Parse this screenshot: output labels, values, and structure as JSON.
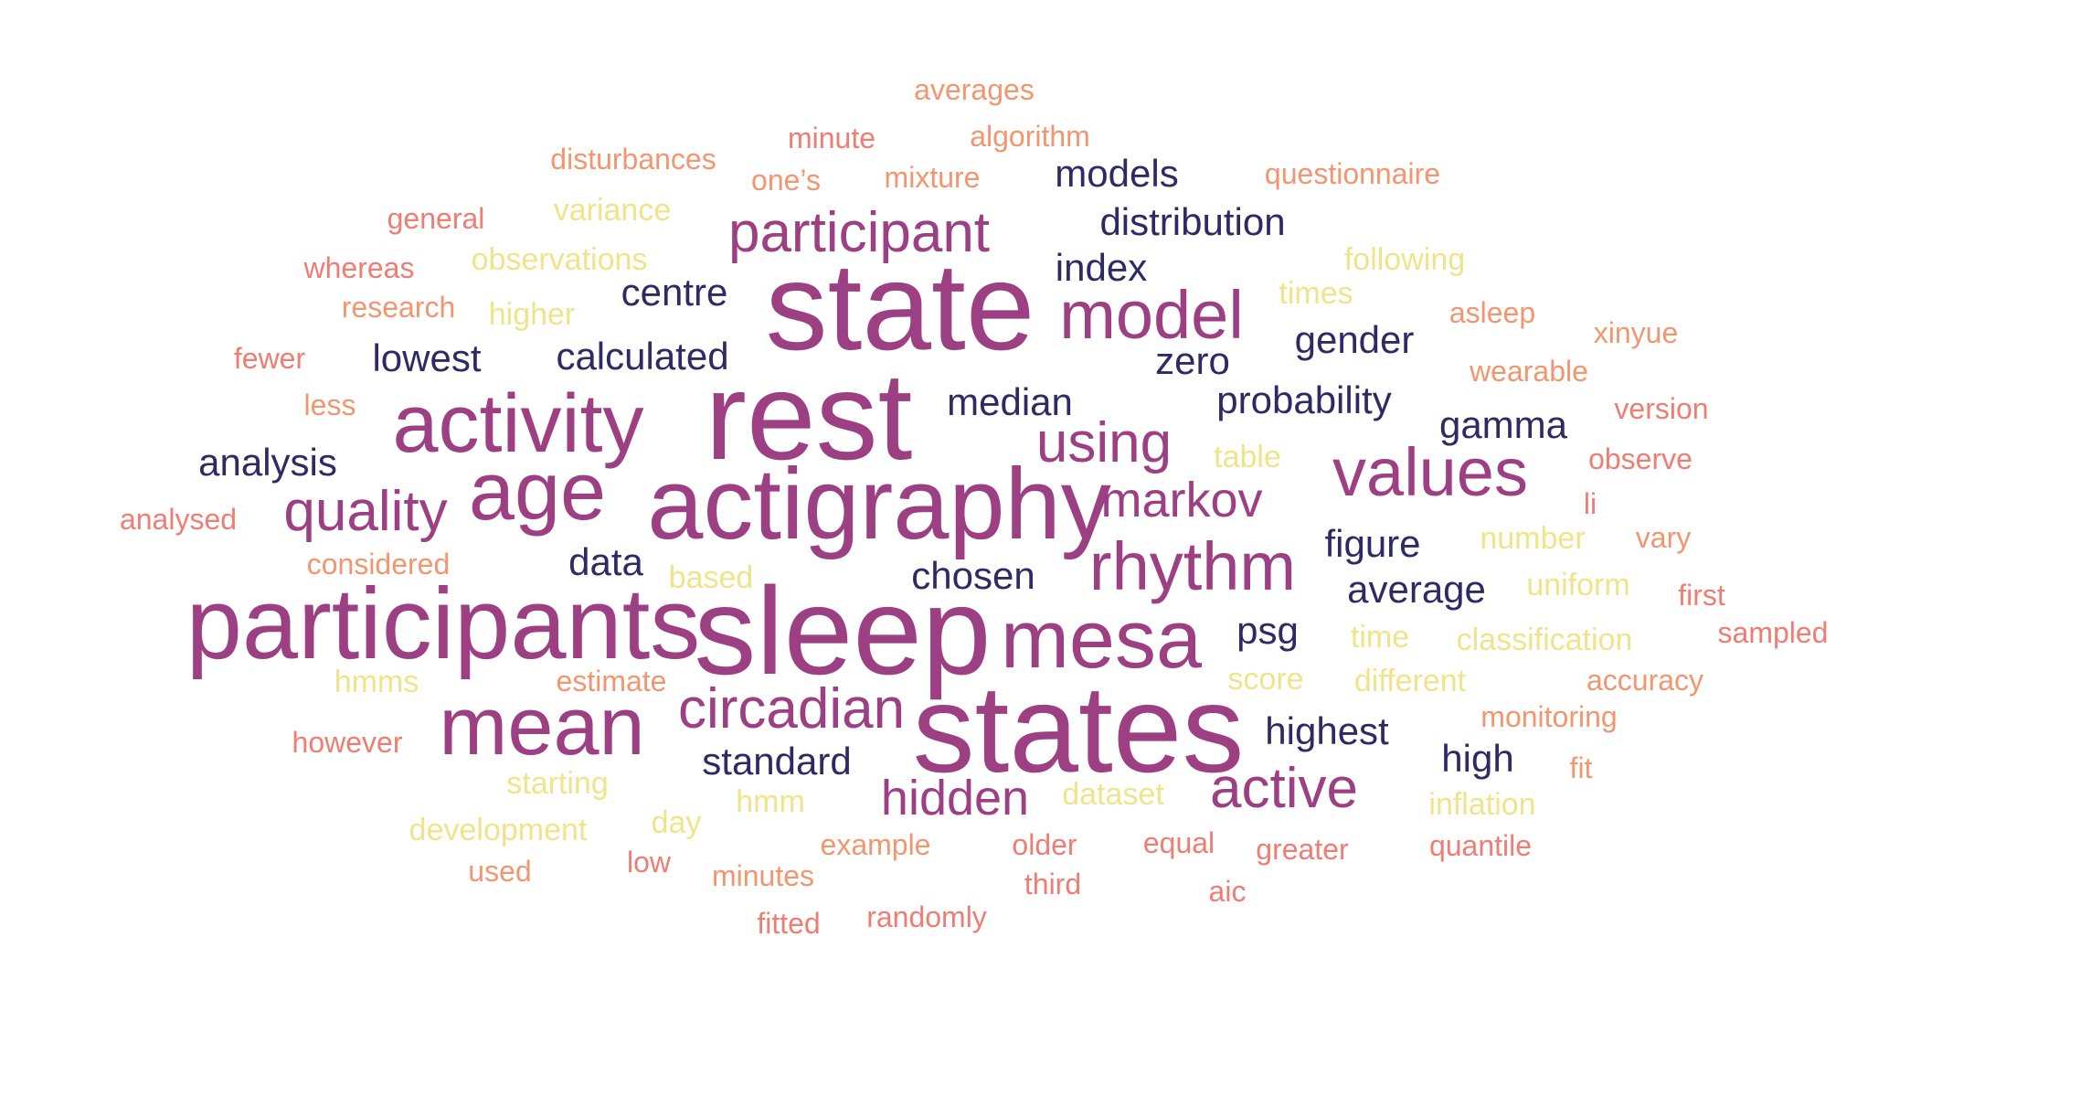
{
  "words": [
    {
      "text": "rest",
      "tier": 2,
      "size": "xxl"
    },
    {
      "text": "state",
      "tier": 2,
      "size": "xxl"
    },
    {
      "text": "sleep",
      "tier": 2,
      "size": "xxl"
    },
    {
      "text": "states",
      "tier": 2,
      "size": "xxl"
    },
    {
      "text": "actigraphy",
      "tier": 2,
      "size": "xl"
    },
    {
      "text": "participants",
      "tier": 2,
      "size": "xl"
    },
    {
      "text": "activity",
      "tier": 2,
      "size": "l"
    },
    {
      "text": "mean",
      "tier": 2,
      "size": "l"
    },
    {
      "text": "mesa",
      "tier": 2,
      "size": "l"
    },
    {
      "text": "age",
      "tier": 2,
      "size": "l"
    },
    {
      "text": "model",
      "tier": 2,
      "size": "m"
    },
    {
      "text": "values",
      "tier": 2,
      "size": "m"
    },
    {
      "text": "rhythm",
      "tier": 2,
      "size": "m"
    },
    {
      "text": "participant",
      "tier": 2,
      "size": "s"
    },
    {
      "text": "quality",
      "tier": 2,
      "size": "s"
    },
    {
      "text": "using",
      "tier": 2,
      "size": "s"
    },
    {
      "text": "circadian",
      "tier": 2,
      "size": "s"
    },
    {
      "text": "active",
      "tier": 2,
      "size": "s"
    },
    {
      "text": "hidden",
      "tier": 2,
      "size": "xs"
    },
    {
      "text": "markov",
      "tier": 2,
      "size": "xs"
    },
    {
      "text": "distribution",
      "tier": 1
    },
    {
      "text": "index",
      "tier": 1
    },
    {
      "text": "models",
      "tier": 1
    },
    {
      "text": "centre",
      "tier": 1
    },
    {
      "text": "lowest",
      "tier": 1
    },
    {
      "text": "calculated",
      "tier": 1
    },
    {
      "text": "zero",
      "tier": 1
    },
    {
      "text": "gender",
      "tier": 1
    },
    {
      "text": "probability",
      "tier": 1
    },
    {
      "text": "median",
      "tier": 1
    },
    {
      "text": "gamma",
      "tier": 1
    },
    {
      "text": "analysis",
      "tier": 1
    },
    {
      "text": "figure",
      "tier": 1
    },
    {
      "text": "data",
      "tier": 1
    },
    {
      "text": "chosen",
      "tier": 1
    },
    {
      "text": "average",
      "tier": 1
    },
    {
      "text": "psg",
      "tier": 1
    },
    {
      "text": "highest",
      "tier": 1
    },
    {
      "text": "standard",
      "tier": 1
    },
    {
      "text": "high",
      "tier": 1
    },
    {
      "text": "variance",
      "tier": 3
    },
    {
      "text": "observations",
      "tier": 3
    },
    {
      "text": "higher",
      "tier": 3
    },
    {
      "text": "following",
      "tier": 3
    },
    {
      "text": "times",
      "tier": 3
    },
    {
      "text": "table",
      "tier": 3
    },
    {
      "text": "number",
      "tier": 3
    },
    {
      "text": "based",
      "tier": 3
    },
    {
      "text": "uniform",
      "tier": 3
    },
    {
      "text": "time",
      "tier": 3
    },
    {
      "text": "classification",
      "tier": 3
    },
    {
      "text": "hmms",
      "tier": 3
    },
    {
      "text": "score",
      "tier": 3
    },
    {
      "text": "different",
      "tier": 3
    },
    {
      "text": "starting",
      "tier": 3
    },
    {
      "text": "hmm",
      "tier": 3
    },
    {
      "text": "dataset",
      "tier": 3
    },
    {
      "text": "inflation",
      "tier": 3
    },
    {
      "text": "development",
      "tier": 3
    },
    {
      "text": "day",
      "tier": 3
    },
    {
      "text": "averages",
      "tier": 4
    },
    {
      "text": "algorithm",
      "tier": 4
    },
    {
      "text": "disturbances",
      "tier": 4
    },
    {
      "text": "mixture",
      "tier": 4
    },
    {
      "text": "questionnaire",
      "tier": 4
    },
    {
      "text": "one’s",
      "tier": 4
    },
    {
      "text": "research",
      "tier": 4
    },
    {
      "text": "asleep",
      "tier": 4
    },
    {
      "text": "xinyue",
      "tier": 4
    },
    {
      "text": "wearable",
      "tier": 4
    },
    {
      "text": "less",
      "tier": 4
    },
    {
      "text": "considered",
      "tier": 4
    },
    {
      "text": "vary",
      "tier": 4
    },
    {
      "text": "estimate",
      "tier": 4
    },
    {
      "text": "accuracy",
      "tier": 4
    },
    {
      "text": "monitoring",
      "tier": 4
    },
    {
      "text": "fit",
      "tier": 4
    },
    {
      "text": "example",
      "tier": 4
    },
    {
      "text": "used",
      "tier": 4
    },
    {
      "text": "minutes",
      "tier": 4
    },
    {
      "text": "minute",
      "tier": 5
    },
    {
      "text": "general",
      "tier": 5
    },
    {
      "text": "whereas",
      "tier": 5
    },
    {
      "text": "fewer",
      "tier": 5
    },
    {
      "text": "version",
      "tier": 5
    },
    {
      "text": "observe",
      "tier": 5
    },
    {
      "text": "li",
      "tier": 5
    },
    {
      "text": "analysed",
      "tier": 5
    },
    {
      "text": "first",
      "tier": 5
    },
    {
      "text": "sampled",
      "tier": 5
    },
    {
      "text": "however",
      "tier": 5
    },
    {
      "text": "older",
      "tier": 5
    },
    {
      "text": "equal",
      "tier": 5
    },
    {
      "text": "greater",
      "tier": 5
    },
    {
      "text": "quantile",
      "tier": 5
    },
    {
      "text": "low",
      "tier": 5
    },
    {
      "text": "third",
      "tier": 5
    },
    {
      "text": "aic",
      "tier": 5
    },
    {
      "text": "fitted",
      "tier": 5
    },
    {
      "text": "randomly",
      "tier": 5
    }
  ]
}
